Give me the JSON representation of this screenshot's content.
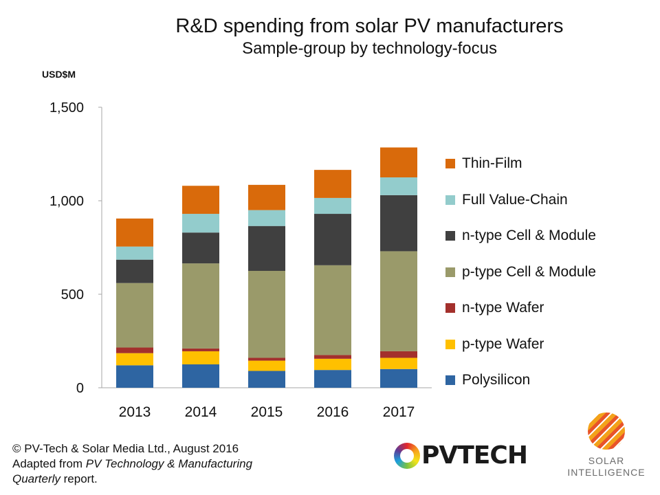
{
  "title": "R&D spending  from solar PV manufacturers",
  "subtitle": "Sample-group by technology-focus",
  "unit_label": "USD$M",
  "footer": {
    "line1": "© PV-Tech & Solar Media Ltd., August 2016",
    "line2_prefix": "Adapted from ",
    "line2_italic": "PV Technology & Manufacturing",
    "line3_italic": "Quarterly",
    "line3_suffix": " report."
  },
  "logos": {
    "pvtech_text": "PVTECH",
    "solar_intelligence_line1": "SOLAR",
    "solar_intelligence_line2": "INTELLIGENCE"
  },
  "chart_data": {
    "type": "bar",
    "stacked": true,
    "categories": [
      "2013",
      "2014",
      "2015",
      "2016",
      "2017"
    ],
    "ylabel": "USD$M",
    "ylim": [
      0,
      1500
    ],
    "yticks": [
      0,
      500,
      1000,
      1500
    ],
    "ytick_labels": [
      "0",
      "500",
      "1,000",
      "1,500"
    ],
    "grid": false,
    "legend_position": "right",
    "series": [
      {
        "name": "Polysilicon",
        "color": "#2e65a2",
        "values": [
          120,
          125,
          90,
          95,
          100
        ]
      },
      {
        "name": "p-type Wafer",
        "color": "#ffc000",
        "values": [
          65,
          70,
          55,
          60,
          60
        ]
      },
      {
        "name": "n-type Wafer",
        "color": "#a3302c",
        "values": [
          30,
          15,
          15,
          20,
          35
        ]
      },
      {
        "name": "p-type Cell & Module",
        "color": "#9a9a6a",
        "values": [
          345,
          455,
          465,
          480,
          535
        ]
      },
      {
        "name": "n-type Cell & Module",
        "color": "#404040",
        "values": [
          125,
          165,
          240,
          275,
          300
        ]
      },
      {
        "name": "Full Value-Chain",
        "color": "#93cccc",
        "values": [
          70,
          100,
          85,
          85,
          95
        ]
      },
      {
        "name": "Thin-Film",
        "color": "#d96a0b",
        "values": [
          150,
          150,
          135,
          150,
          160
        ]
      }
    ]
  }
}
